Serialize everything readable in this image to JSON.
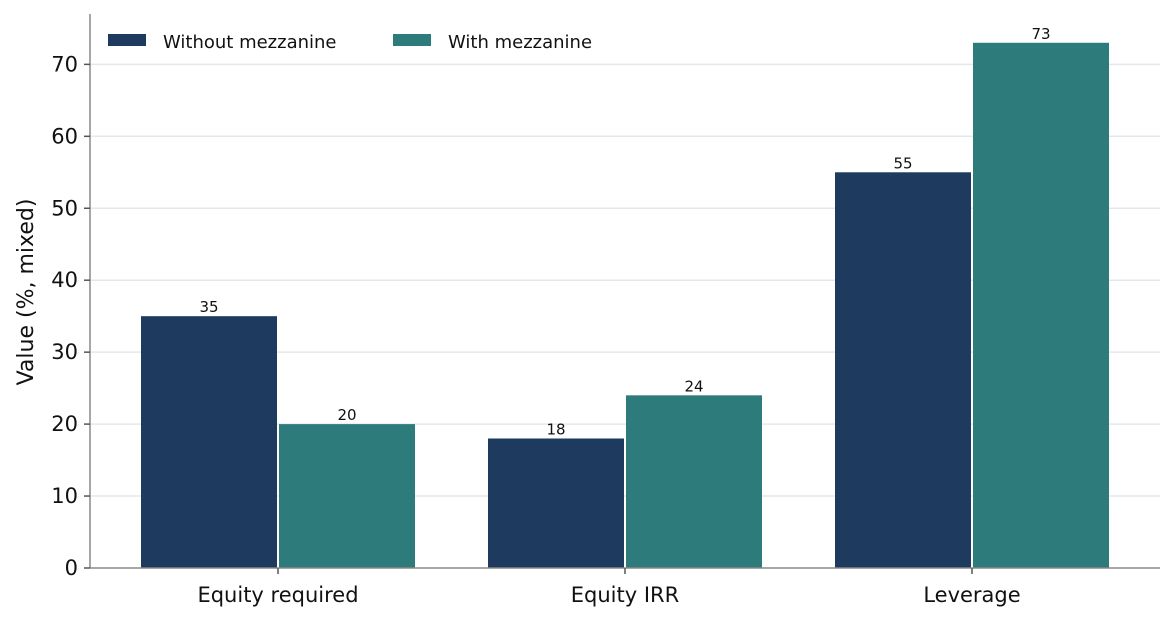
{
  "chart_data": {
    "type": "bar",
    "title": "",
    "xlabel": "",
    "ylabel": "Value (%, mixed)",
    "categories": [
      "Equity required",
      "Equity IRR",
      "Leverage"
    ],
    "series": [
      {
        "name": "Without mezzanine",
        "values": [
          35,
          18,
          55
        ],
        "color": "#1f3a5f"
      },
      {
        "name": "With mezzanine",
        "values": [
          20,
          24,
          73
        ],
        "color": "#2e7b7b"
      }
    ],
    "ylim": [
      0,
      77
    ],
    "yticks": [
      0,
      10,
      20,
      30,
      40,
      50,
      60,
      70
    ],
    "grid": "y",
    "legend": "top-left"
  }
}
